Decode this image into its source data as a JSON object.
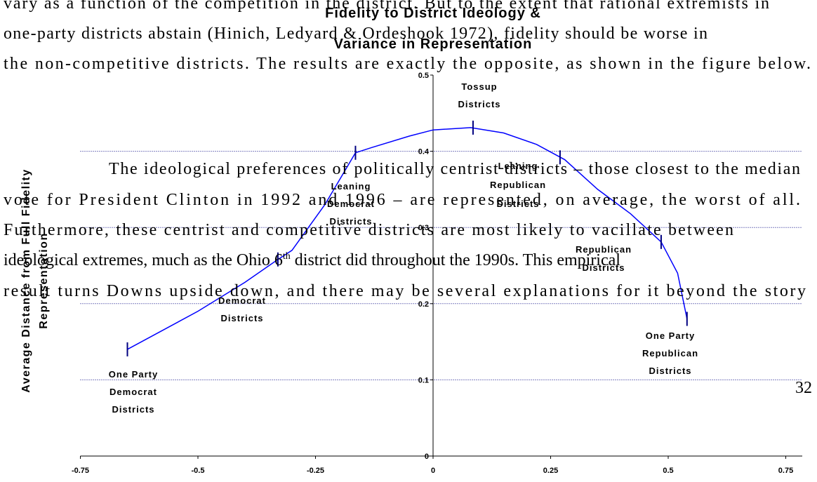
{
  "text": {
    "lines": [
      "vary as a function of the competition in the district.  But to the extent that rational extremists in",
      "one-party districts abstain (Hinich, Ledyard & Ordeshook 1972), fidelity should be worse in",
      "the non-competitive districts.  The results are exactly the opposite, as shown in the figure below.",
      "The ideological preferences of politically centrist districts – those closest to the median",
      "vote for President Clinton in 1992 and 1996 – are represented, on average, the worst of all.",
      "Furthermore, these centrist and competitive districts are most likely to vacillate between",
      {
        "before": "ideological extremes, much as the Ohio 6",
        "sup": "th",
        "after": " district did throughout the 1990s.  This empirical"
      },
      "result turns Downs upside down, and there may be several explanations for it beyond the story"
    ],
    "page_number": "32"
  },
  "figure": {
    "title": [
      "Fidelity to District Ideology &",
      "Variance in Representation"
    ],
    "y_label": [
      "Average Distance from Full Fidelity",
      "Representation"
    ],
    "xlim": [
      -0.75,
      0.75
    ],
    "ylim": [
      0,
      0.5
    ],
    "xticks": [
      -0.75,
      -0.5,
      -0.25,
      0,
      0.25,
      0.5,
      0.75
    ],
    "yticks": [
      0,
      0.1,
      0.2,
      0.3,
      0.4,
      0.5
    ],
    "grid": true,
    "color": "#0000ff",
    "curve": {
      "x": [
        -0.65,
        -0.5,
        -0.4,
        -0.33,
        -0.3,
        -0.23,
        -0.165,
        -0.13,
        -0.05,
        0,
        0.08,
        0.15,
        0.22,
        0.28,
        0.35,
        0.42,
        0.485,
        0.52,
        0.54
      ],
      "y": [
        0.14,
        0.19,
        0.228,
        0.258,
        0.27,
        0.33,
        0.398,
        0.405,
        0.42,
        0.428,
        0.431,
        0.424,
        0.409,
        0.389,
        0.35,
        0.318,
        0.281,
        0.24,
        0.18
      ]
    },
    "markers": {
      "x": [
        -0.65,
        -0.33,
        -0.165,
        0.085,
        0.27,
        0.485,
        0.54
      ],
      "y": [
        0.14,
        0.258,
        0.398,
        0.431,
        0.392,
        0.281,
        0.18
      ]
    },
    "group_labels": [
      [
        "One Party",
        "Democrat",
        "Districts"
      ],
      [
        "Democrat",
        "Districts"
      ],
      [
        "Leaning",
        "Democrat",
        "Districts"
      ],
      [
        "Tossup",
        "Districts"
      ],
      [
        "Leaning",
        "Republican",
        "Districts"
      ],
      [
        "Republican",
        "Districts"
      ],
      [
        "One Party",
        "Republican",
        "Districts"
      ]
    ]
  }
}
